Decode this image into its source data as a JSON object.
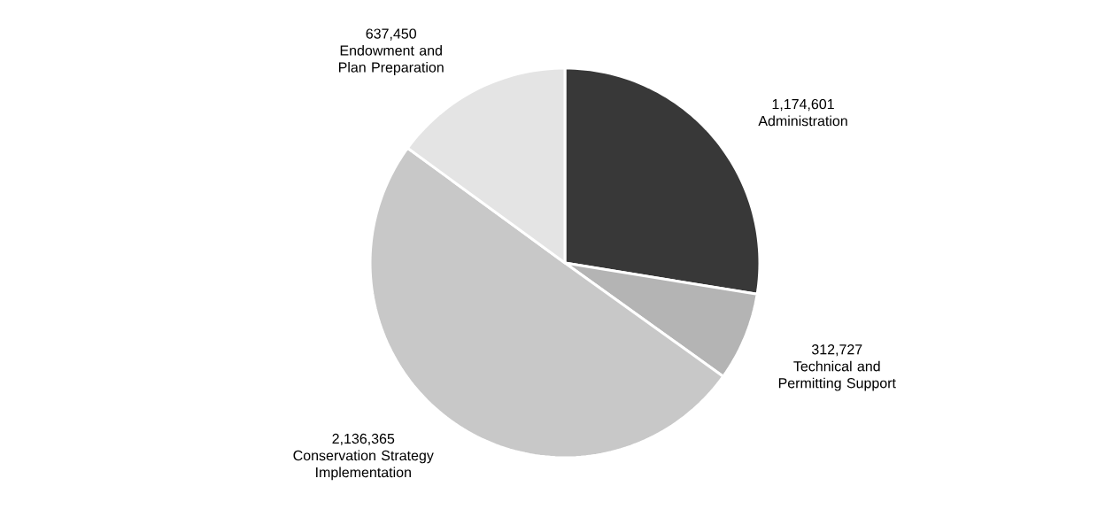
{
  "chart_data": {
    "type": "pie",
    "categories": [
      "Administration",
      "Technical and Permitting Support",
      "Conservation Strategy Implementation",
      "Endowment and Plan Preparation"
    ],
    "values": [
      1174601,
      312727,
      2136365,
      637450
    ],
    "value_labels": [
      "1,174,601",
      "312,727",
      "2,136,365",
      "637,450"
    ],
    "colors": [
      "#383838",
      "#b4b4b4",
      "#c8c8c8",
      "#e4e4e4"
    ]
  }
}
